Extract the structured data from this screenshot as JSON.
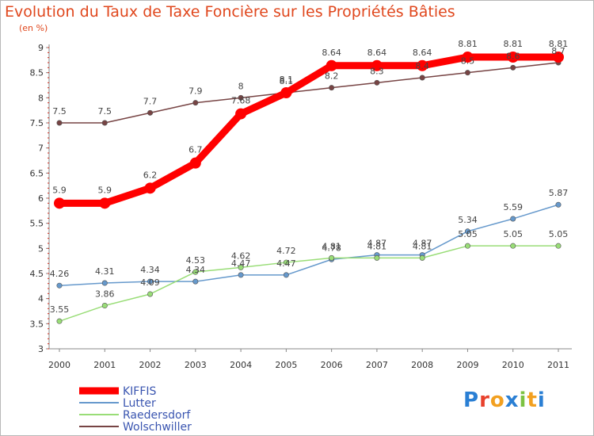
{
  "title": "Evolution du Taux de Taxe Foncière sur les Propriétés Bâties",
  "unit_label": "(en %)",
  "logo": {
    "text": "Proxiti",
    "colors": [
      "#2a7fd4",
      "#e8412c",
      "#f2a020",
      "#2a7fd4",
      "#7cc242",
      "#f2a020",
      "#2a7fd4"
    ]
  },
  "chart_data": {
    "type": "line",
    "x": [
      "2000",
      "2001",
      "2002",
      "2003",
      "2004",
      "2005",
      "2006",
      "2007",
      "2008",
      "2009",
      "2010",
      "2011"
    ],
    "ylim": [
      3,
      9
    ],
    "yticks": [
      "3",
      "3.5",
      "4",
      "4.5",
      "5",
      "5.5",
      "6",
      "6.5",
      "7",
      "7.5",
      "8",
      "8.5",
      "9"
    ],
    "grid": false,
    "legend_position": "bottom-left",
    "series": [
      {
        "name": "KIFFIS",
        "color": "#ff0000",
        "values": [
          5.9,
          5.9,
          6.2,
          6.7,
          7.68,
          8.1,
          8.64,
          8.64,
          8.64,
          8.81,
          8.81,
          8.81
        ],
        "labels": [
          "5.9",
          "5.9",
          "6.2",
          "6.7",
          "7.68",
          "8.1",
          "8.64",
          "8.64",
          "8.64",
          "8.81",
          "8.81",
          "8.81"
        ]
      },
      {
        "name": "Lutter",
        "color": "#6699cc",
        "values": [
          4.26,
          4.31,
          4.34,
          4.34,
          4.47,
          4.47,
          4.78,
          4.87,
          4.87,
          5.34,
          5.59,
          5.87
        ],
        "labels": [
          "4.26",
          "4.31",
          "4.34",
          "4.34",
          "4.47",
          "4.47",
          "4.78",
          "4.87",
          "4.87",
          "5.34",
          "5.59",
          "5.87"
        ]
      },
      {
        "name": "Raedersdorf",
        "color": "#99dd77",
        "values": [
          3.55,
          3.86,
          4.09,
          4.53,
          4.62,
          4.72,
          4.81,
          4.81,
          4.81,
          5.05,
          5.05,
          5.05
        ],
        "labels": [
          "3.55",
          "3.86",
          "4.09",
          "4.53",
          "4.62",
          "4.72",
          "4.81",
          "4.81",
          "4.81",
          "5.05",
          "5.05",
          "5.05"
        ]
      },
      {
        "name": "Wolschwiller",
        "color": "#774444",
        "values": [
          7.5,
          7.5,
          7.7,
          7.9,
          8.0,
          8.1,
          8.2,
          8.3,
          8.4,
          8.5,
          8.6,
          8.7
        ],
        "labels": [
          "7.5",
          "7.5",
          "7.7",
          "7.9",
          "8",
          "8.1",
          "8.2",
          "8.3",
          "8.4",
          "8.5",
          "8.6",
          "8.7"
        ]
      }
    ]
  }
}
